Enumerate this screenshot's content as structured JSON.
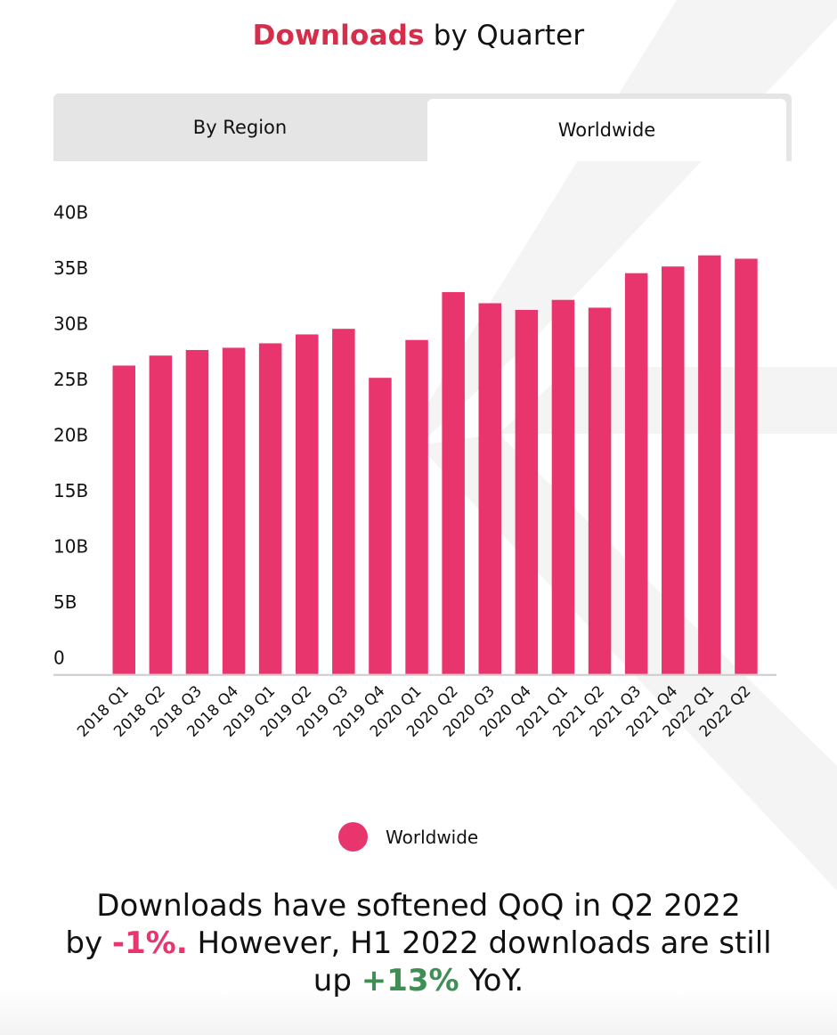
{
  "header": {
    "title_accent": "Downloads",
    "title_rest": " by Quarter",
    "accent_color": "#d62d4b"
  },
  "tabs": [
    {
      "label": "By Region",
      "active": false
    },
    {
      "label": "Worldwide",
      "active": true
    }
  ],
  "legend": {
    "label": "Worldwide",
    "color": "#e9356d"
  },
  "summary": {
    "line1": "Downloads have softened QoQ in Q2 2022",
    "part_by": "by ",
    "qoq_change": "-1%.",
    "part_mid": " However, H1 2022 downloads are still",
    "part_up": "up ",
    "yoy_change": "+13%",
    "part_end": " YoY.",
    "negative_color": "#e9356d",
    "positive_color": "#3f8f55"
  },
  "chart_data": {
    "type": "bar",
    "title": "Downloads by Quarter",
    "xlabel": "",
    "ylabel": "",
    "ylim": [
      0,
      40
    ],
    "yunit": "B",
    "yticks": [
      0,
      5,
      10,
      15,
      20,
      25,
      30,
      35,
      40
    ],
    "ytick_labels": [
      "0",
      "5B",
      "10B",
      "15B",
      "20B",
      "25B",
      "30B",
      "35B",
      "40B"
    ],
    "grid": false,
    "legend_position": "bottom",
    "bar_color": "#e9356d",
    "categories": [
      "2018 Q1",
      "2018 Q2",
      "2018 Q3",
      "2018 Q4",
      "2019 Q1",
      "2019 Q2",
      "2019 Q3",
      "2019 Q4",
      "2020 Q1",
      "2020 Q2",
      "2020 Q3",
      "2020 Q4",
      "2021 Q1",
      "2021 Q2",
      "2021 Q3",
      "2021 Q4",
      "2022 Q1",
      "2022 Q2"
    ],
    "series": [
      {
        "name": "Worldwide",
        "values": [
          27.7,
          28.6,
          29.1,
          29.3,
          29.7,
          30.5,
          31.0,
          26.6,
          30.0,
          34.3,
          33.3,
          32.7,
          33.6,
          32.9,
          36.0,
          36.6,
          37.6,
          37.3
        ]
      }
    ]
  }
}
